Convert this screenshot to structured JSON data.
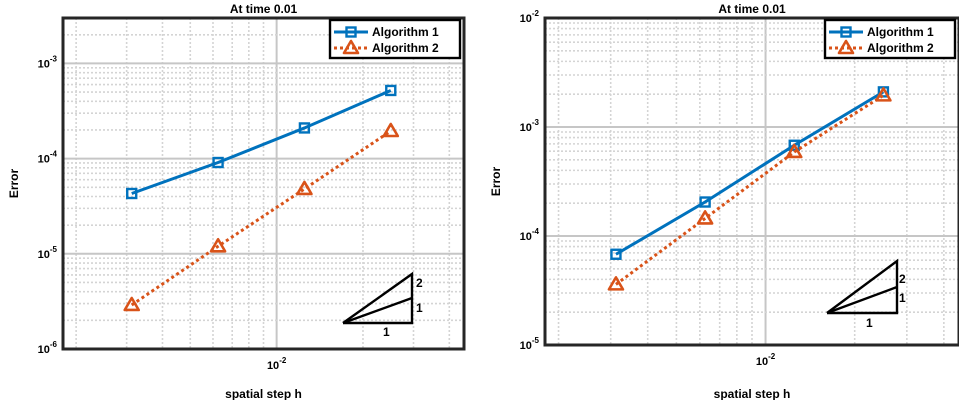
{
  "colors": {
    "series1": "#0072BD",
    "series2": "#D95319",
    "grid_major": "#c6c6c6",
    "grid_minor": "#d4d4d4",
    "axis": "#262626"
  },
  "chart_data": [
    {
      "type": "line",
      "title": "At time 0.01",
      "xlabel": "spatial step h",
      "ylabel": "Error",
      "xscale": "log",
      "yscale": "log",
      "xlim": [
        0.0018,
        0.045
      ],
      "ylim": [
        1e-06,
        0.003
      ],
      "xticks": [
        {
          "base": "10",
          "exp": "-2"
        }
      ],
      "yticks": [
        {
          "base": "10",
          "exp": "-6"
        },
        {
          "base": "10",
          "exp": "-5"
        },
        {
          "base": "10",
          "exp": "-4"
        },
        {
          "base": "10",
          "exp": "-3"
        }
      ],
      "grid": true,
      "legend_position": "top-right",
      "series": [
        {
          "name": "Algorithm 1",
          "marker": "square",
          "line": "solid",
          "x": [
            0.003125,
            0.00625,
            0.0125,
            0.025
          ],
          "y": [
            4.3e-05,
            9.1e-05,
            0.00021,
            0.00052
          ]
        },
        {
          "name": "Algorithm 2",
          "marker": "triangle",
          "line": "dotted",
          "x": [
            0.003125,
            0.00625,
            0.0125,
            0.025
          ],
          "y": [
            2.9e-06,
            1.2e-05,
            4.8e-05,
            0.000195
          ]
        }
      ],
      "slope_triangle_labels": {
        "slope2": "2",
        "slope1": "1",
        "base": "1"
      }
    },
    {
      "type": "line",
      "title": "At time 0.01",
      "xlabel": "spatial step h",
      "ylabel": "Error",
      "xscale": "log",
      "yscale": "log",
      "xlim": [
        0.0018,
        0.045
      ],
      "ylim": [
        1e-05,
        0.01
      ],
      "xticks": [
        {
          "base": "10",
          "exp": "-2"
        }
      ],
      "yticks": [
        {
          "base": "10",
          "exp": "-5"
        },
        {
          "base": "10",
          "exp": "-4"
        },
        {
          "base": "10",
          "exp": "-3"
        },
        {
          "base": "10",
          "exp": "-2"
        }
      ],
      "grid": true,
      "legend_position": "top-right",
      "series": [
        {
          "name": "Algorithm 1",
          "marker": "square",
          "line": "solid",
          "x": [
            0.003125,
            0.00625,
            0.0125,
            0.025
          ],
          "y": [
            6.8e-05,
            0.000205,
            0.00068,
            0.0021
          ]
        },
        {
          "name": "Algorithm 2",
          "marker": "triangle",
          "line": "dotted",
          "x": [
            0.003125,
            0.00625,
            0.0125,
            0.025
          ],
          "y": [
            3.6e-05,
            0.000145,
            0.00059,
            0.00195
          ]
        }
      ],
      "slope_triangle_labels": {
        "slope2": "2",
        "slope1": "1",
        "base": "1"
      }
    }
  ]
}
